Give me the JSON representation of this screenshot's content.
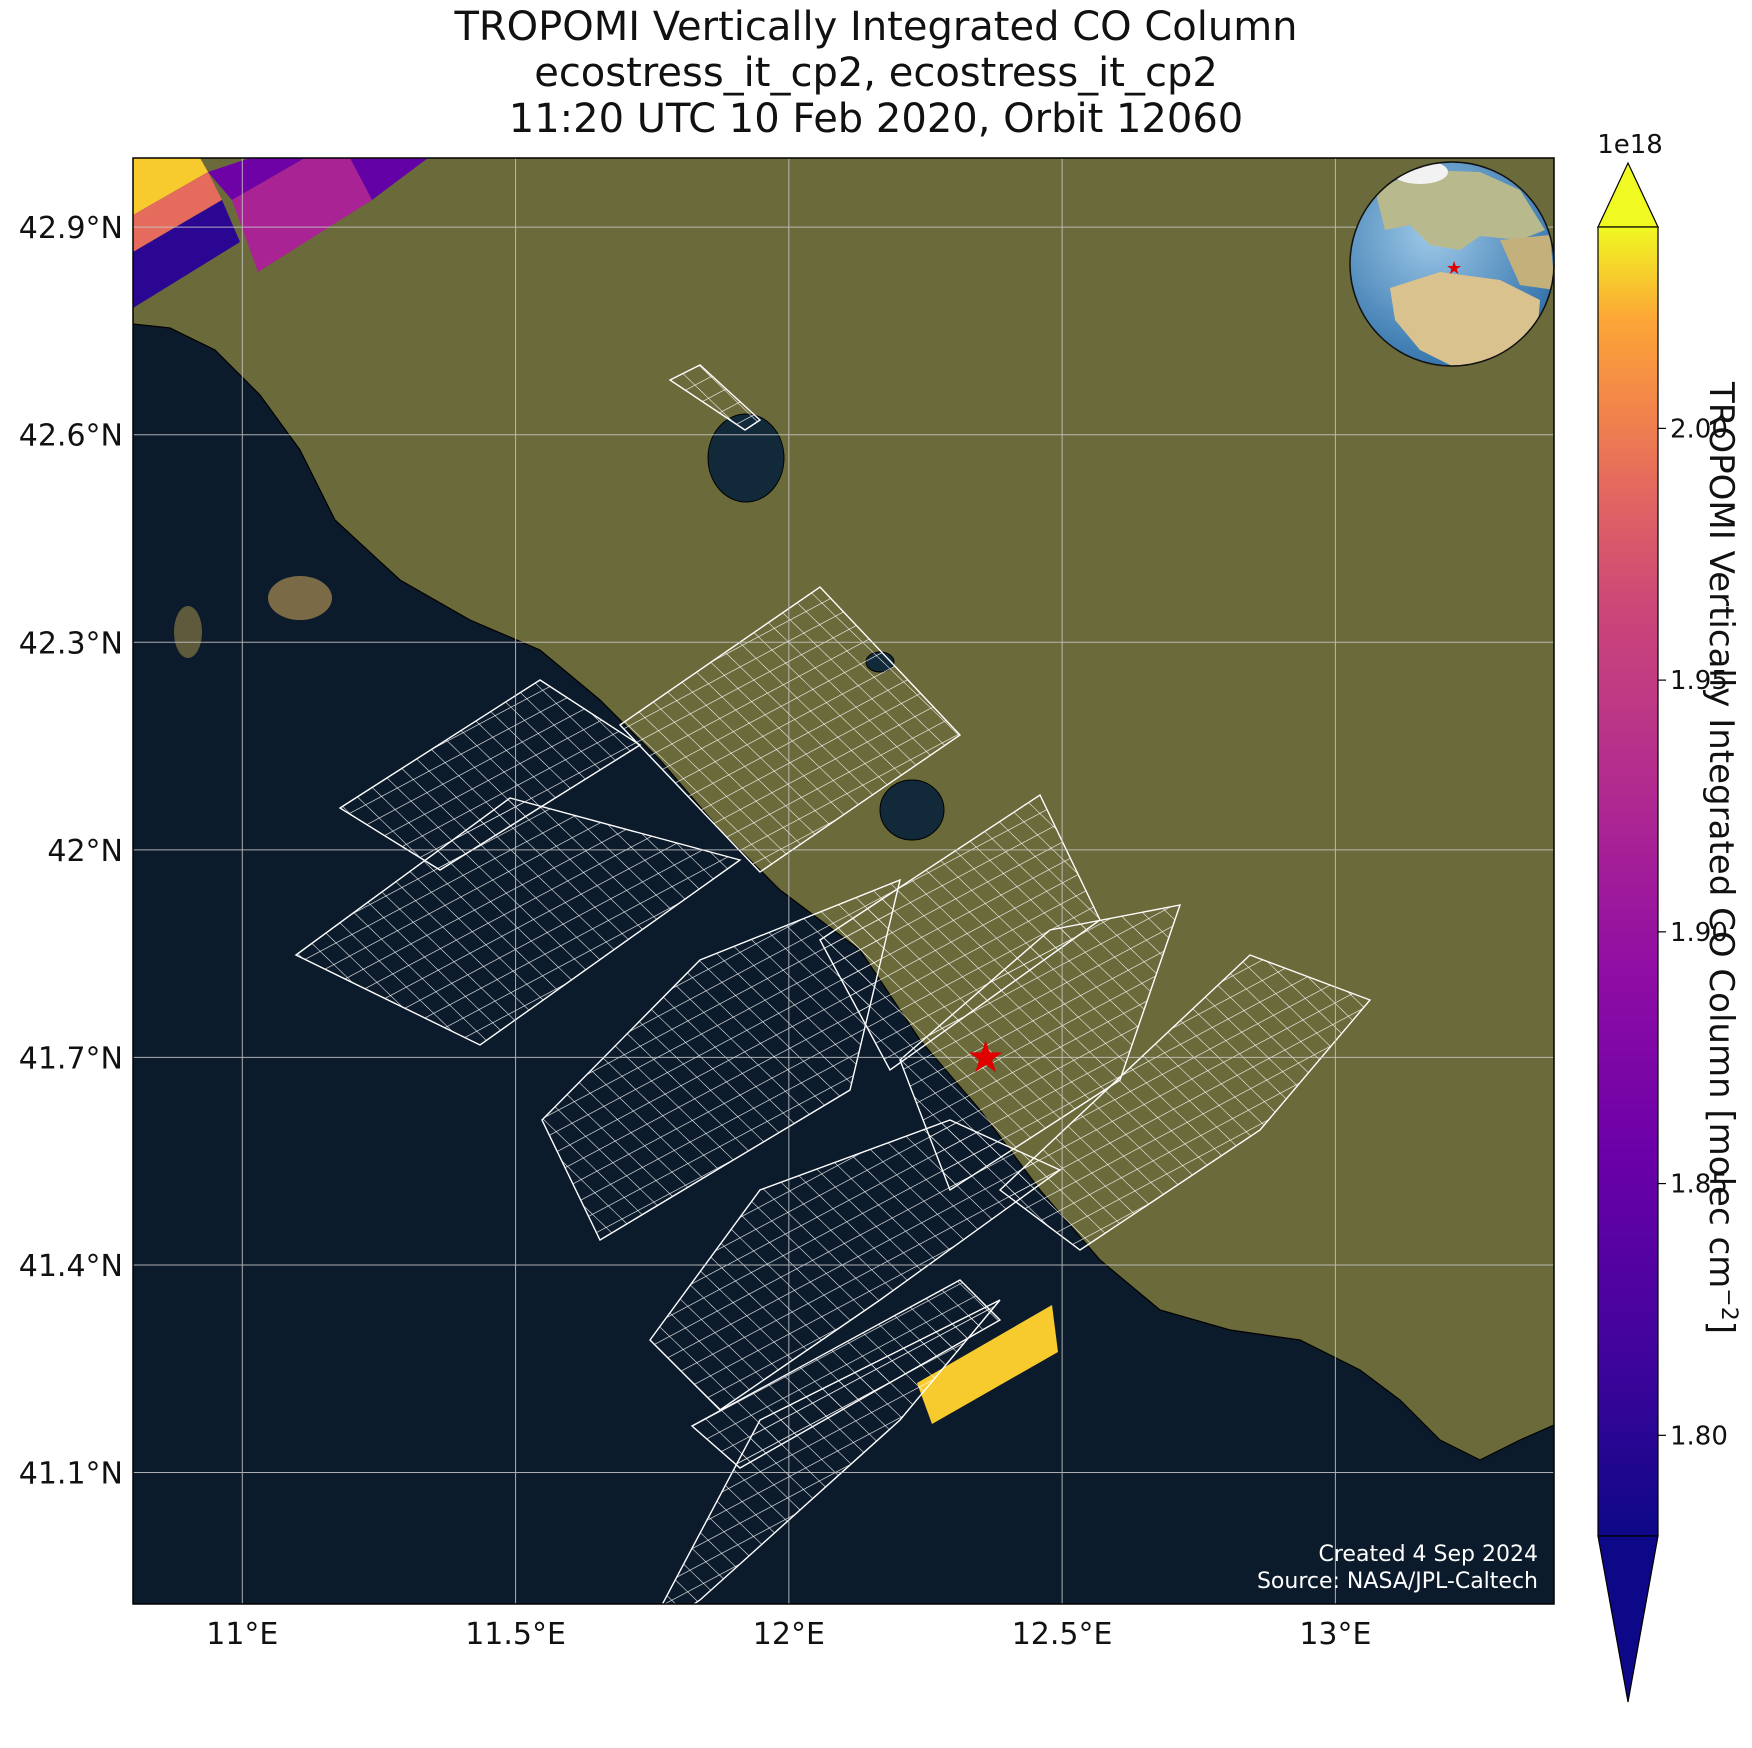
{
  "title": {
    "line1": "TROPOMI Vertically Integrated CO Column",
    "line2": "ecostress_it_cp2, ecostress_it_cp2",
    "line3": "11:20 UTC 10 Feb 2020, Orbit 12060"
  },
  "map": {
    "lon_ticks": [
      {
        "value": 11.0,
        "label": "11°E"
      },
      {
        "value": 11.5,
        "label": "11.5°E"
      },
      {
        "value": 12.0,
        "label": "12°E"
      },
      {
        "value": 12.5,
        "label": "12.5°E"
      },
      {
        "value": 13.0,
        "label": "13°E"
      }
    ],
    "lat_ticks": [
      {
        "value": 42.9,
        "label": "42.9°N"
      },
      {
        "value": 42.6,
        "label": "42.6°N"
      },
      {
        "value": 42.3,
        "label": "42.3°N"
      },
      {
        "value": 42.0,
        "label": "42°N"
      },
      {
        "value": 41.7,
        "label": "41.7°N"
      },
      {
        "value": 41.4,
        "label": "41.4°N"
      },
      {
        "value": 41.1,
        "label": "41.1°N"
      }
    ],
    "lon_range": [
      10.8,
      13.4
    ],
    "lat_range": [
      40.91,
      43.0
    ],
    "site_marker": {
      "lon": 12.36,
      "lat": 41.7,
      "symbol": "red-star"
    },
    "sea_color": "#0c1b2c",
    "land_color": "#6b6a3a",
    "footprint_outline_color": "#ffffff"
  },
  "credits": {
    "created": "Created 4 Sep 2024",
    "source": "Source: NASA/JPL-Caltech"
  },
  "colorbar": {
    "label_main": "TROPOMI Vertically Integrated CO Column [molec cm",
    "label_exp": "−2",
    "label_close": "]",
    "scale_exponent": "1e18",
    "colormap": "plasma",
    "vmin": 1.78,
    "vmax": 2.04,
    "extend": "both",
    "ticks": [
      {
        "value": 1.8,
        "label": "1.80"
      },
      {
        "value": 1.85,
        "label": "1.85"
      },
      {
        "value": 1.9,
        "label": "1.90"
      },
      {
        "value": 1.95,
        "label": "1.95"
      },
      {
        "value": 2.0,
        "label": "2.00"
      }
    ]
  },
  "chart_data": {
    "type": "heatmap",
    "pixels": [
      {
        "value": 2.03
      },
      {
        "value": 1.99
      },
      {
        "value": 1.86
      },
      {
        "value": 1.8
      },
      {
        "value": 1.92
      },
      {
        "value": 1.85
      },
      {
        "value": 2.03
      }
    ]
  }
}
